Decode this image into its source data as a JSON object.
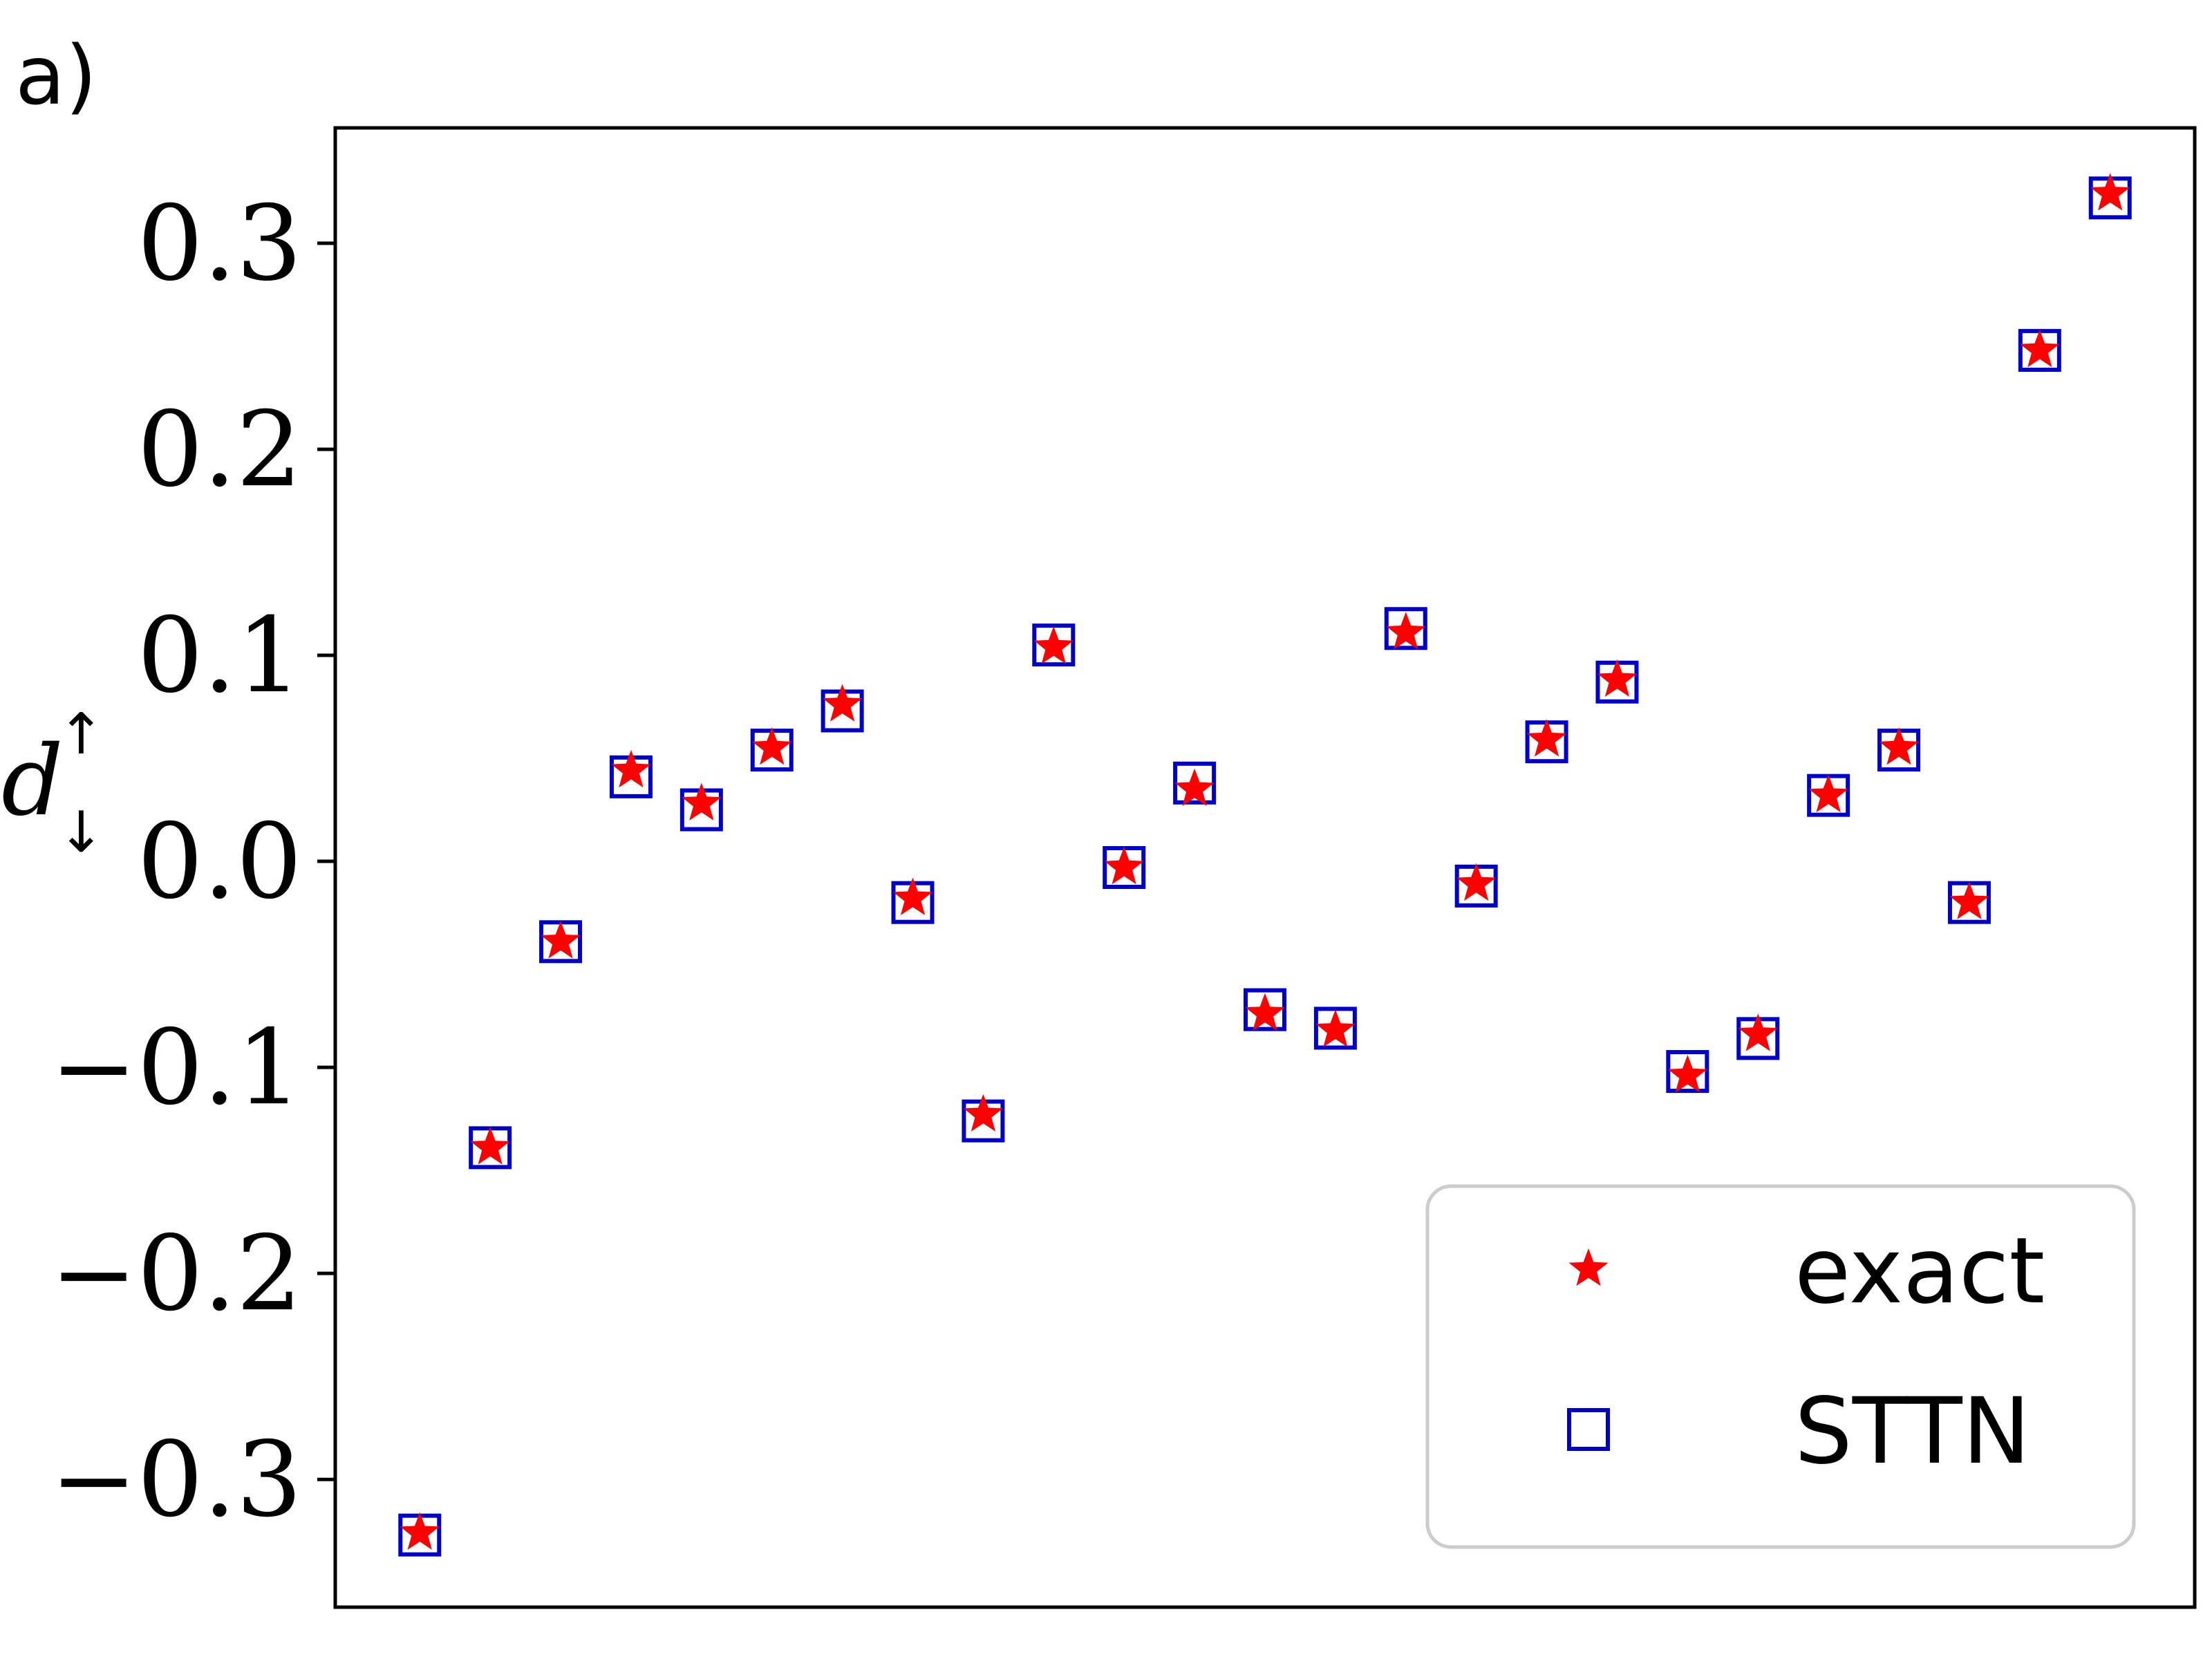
{
  "chart_data": {
    "type": "scatter",
    "panel_label": "a)",
    "ylabel": {
      "base": "d",
      "superscript": "↑",
      "subscript": "↓"
    },
    "xlabel": "",
    "x": [
      1,
      2,
      3,
      4,
      5,
      6,
      7,
      8,
      9,
      10,
      11,
      12,
      13,
      14,
      15,
      16,
      17,
      18,
      19,
      20,
      21,
      22,
      23,
      24,
      25
    ],
    "xlim": [
      -0.2,
      26.2
    ],
    "ylim": [
      -0.362,
      0.356
    ],
    "yticks": [
      -0.3,
      -0.2,
      -0.1,
      0.0,
      0.1,
      0.2,
      0.3
    ],
    "ytick_labels": [
      "−0.3",
      "−0.2",
      "−0.1",
      "0.0",
      "0.1",
      "0.2",
      "0.3"
    ],
    "grid": false,
    "legend": {
      "position": "lower-right"
    },
    "series": [
      {
        "name": "exact",
        "marker": "star",
        "color": "#ff0000",
        "values": [
          -0.326,
          -0.139,
          -0.039,
          0.044,
          0.028,
          0.055,
          0.076,
          -0.018,
          -0.123,
          0.104,
          -0.003,
          0.035,
          -0.074,
          -0.082,
          0.111,
          -0.011,
          0.059,
          0.088,
          -0.104,
          -0.084,
          0.032,
          0.055,
          -0.02,
          0.248,
          0.324
        ]
      },
      {
        "name": "STTN",
        "marker": "square",
        "color": "#0000cc",
        "values": [
          -0.327,
          -0.139,
          -0.039,
          0.041,
          0.025,
          0.054,
          0.073,
          -0.02,
          -0.126,
          0.105,
          -0.003,
          0.038,
          -0.072,
          -0.081,
          0.113,
          -0.012,
          0.058,
          0.087,
          -0.102,
          -0.086,
          0.032,
          0.054,
          -0.02,
          0.248,
          0.322
        ]
      }
    ]
  }
}
